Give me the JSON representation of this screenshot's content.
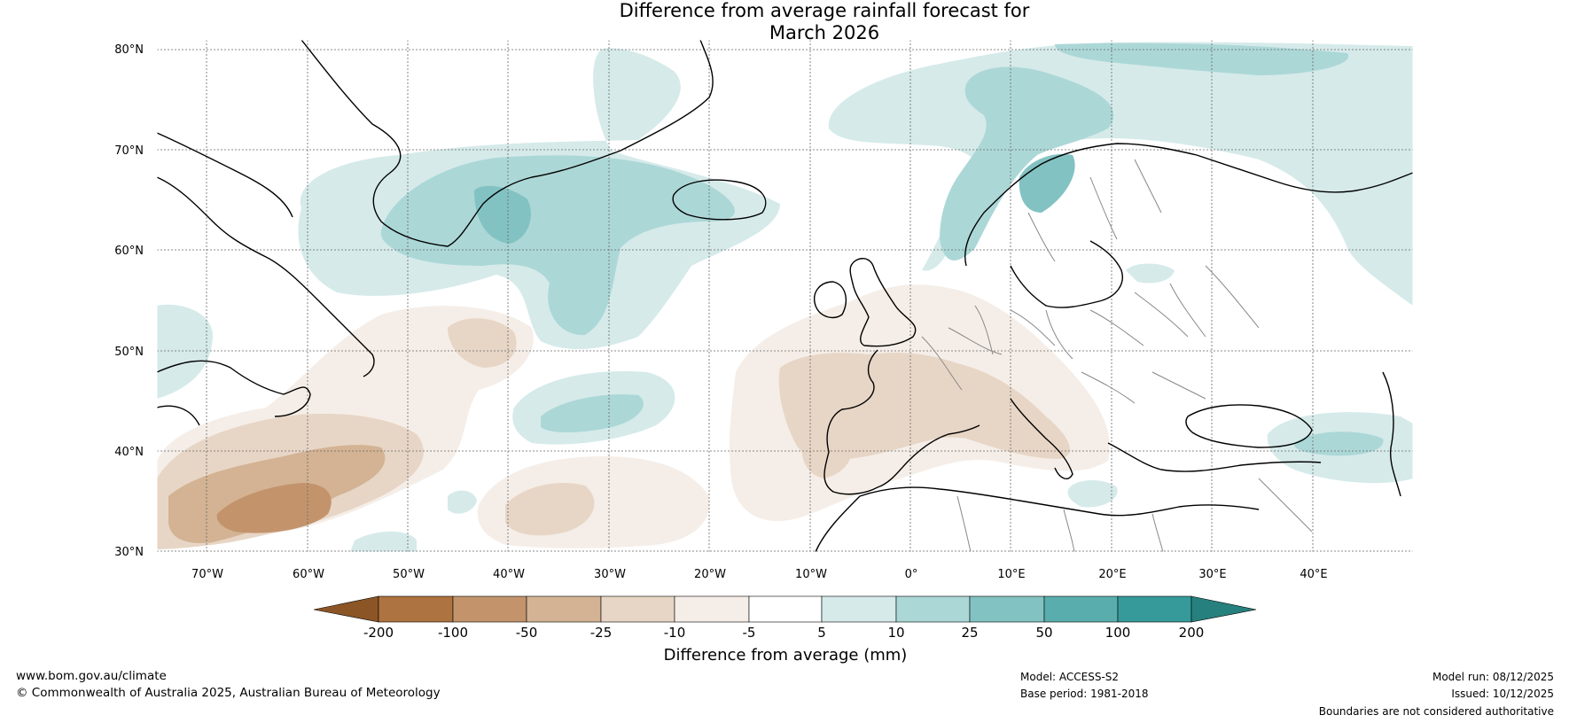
{
  "title": {
    "line1": "Difference from average rainfall forecast for",
    "line2": "March 2026"
  },
  "map": {
    "lat_labels": [
      "80°N",
      "70°N",
      "60°N",
      "50°N",
      "40°N",
      "30°N"
    ],
    "lon_labels": [
      "70°W",
      "60°W",
      "50°W",
      "40°W",
      "30°W",
      "20°W",
      "10°W",
      "0°",
      "10°E",
      "20°E",
      "30°E",
      "40°E"
    ],
    "extent": {
      "lon": [
        -75,
        50
      ],
      "lat": [
        30,
        80
      ]
    }
  },
  "legend": {
    "title": "Difference from average (mm)",
    "ticks": [
      "-200",
      "-100",
      "-50",
      "-25",
      "-10",
      "-5",
      "5",
      "10",
      "25",
      "50",
      "100",
      "200"
    ],
    "colors": [
      "#8b5526",
      "#ad7340",
      "#c3946c",
      "#d3b393",
      "#e7d6c6",
      "#f5eee8",
      "#ffffff",
      "#d6eaea",
      "#acd7d7",
      "#83c2c2",
      "#5aadad",
      "#369a9a",
      "#26807e"
    ]
  },
  "footer": {
    "website": "www.bom.gov.au/climate",
    "copyright": "© Commonwealth of Australia 2025, Australian Bureau of Meteorology",
    "model": "Model: ACCESS-S2",
    "base_period": "Base period: 1981-2018",
    "model_run": "Model run: 08/12/2025",
    "issued": "Issued: 10/12/2025",
    "disclaimer": "Boundaries are not considered authoritative"
  }
}
